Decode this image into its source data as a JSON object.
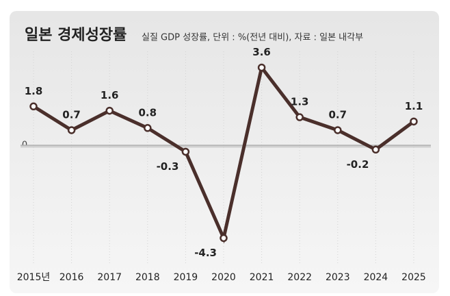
{
  "chart_data": {
    "type": "line",
    "title": "일본 경제성장률",
    "subtitle": "실질 GDP 성장률, 단위 : %(전년 대비), 자료 : 일본 내각부",
    "categories": [
      "2015년",
      "2016",
      "2017",
      "2018",
      "2019",
      "2020",
      "2021",
      "2022",
      "2023",
      "2024",
      "2025"
    ],
    "series": [
      {
        "name": "실질 GDP 성장률",
        "color": "#4a2f2b",
        "values": [
          1.8,
          0.7,
          1.6,
          0.8,
          -0.3,
          -4.3,
          3.6,
          1.3,
          0.7,
          -0.2,
          1.1
        ]
      }
    ],
    "ylim": [
      -5,
      5
    ],
    "yticks": [
      0
    ],
    "grid": true
  }
}
